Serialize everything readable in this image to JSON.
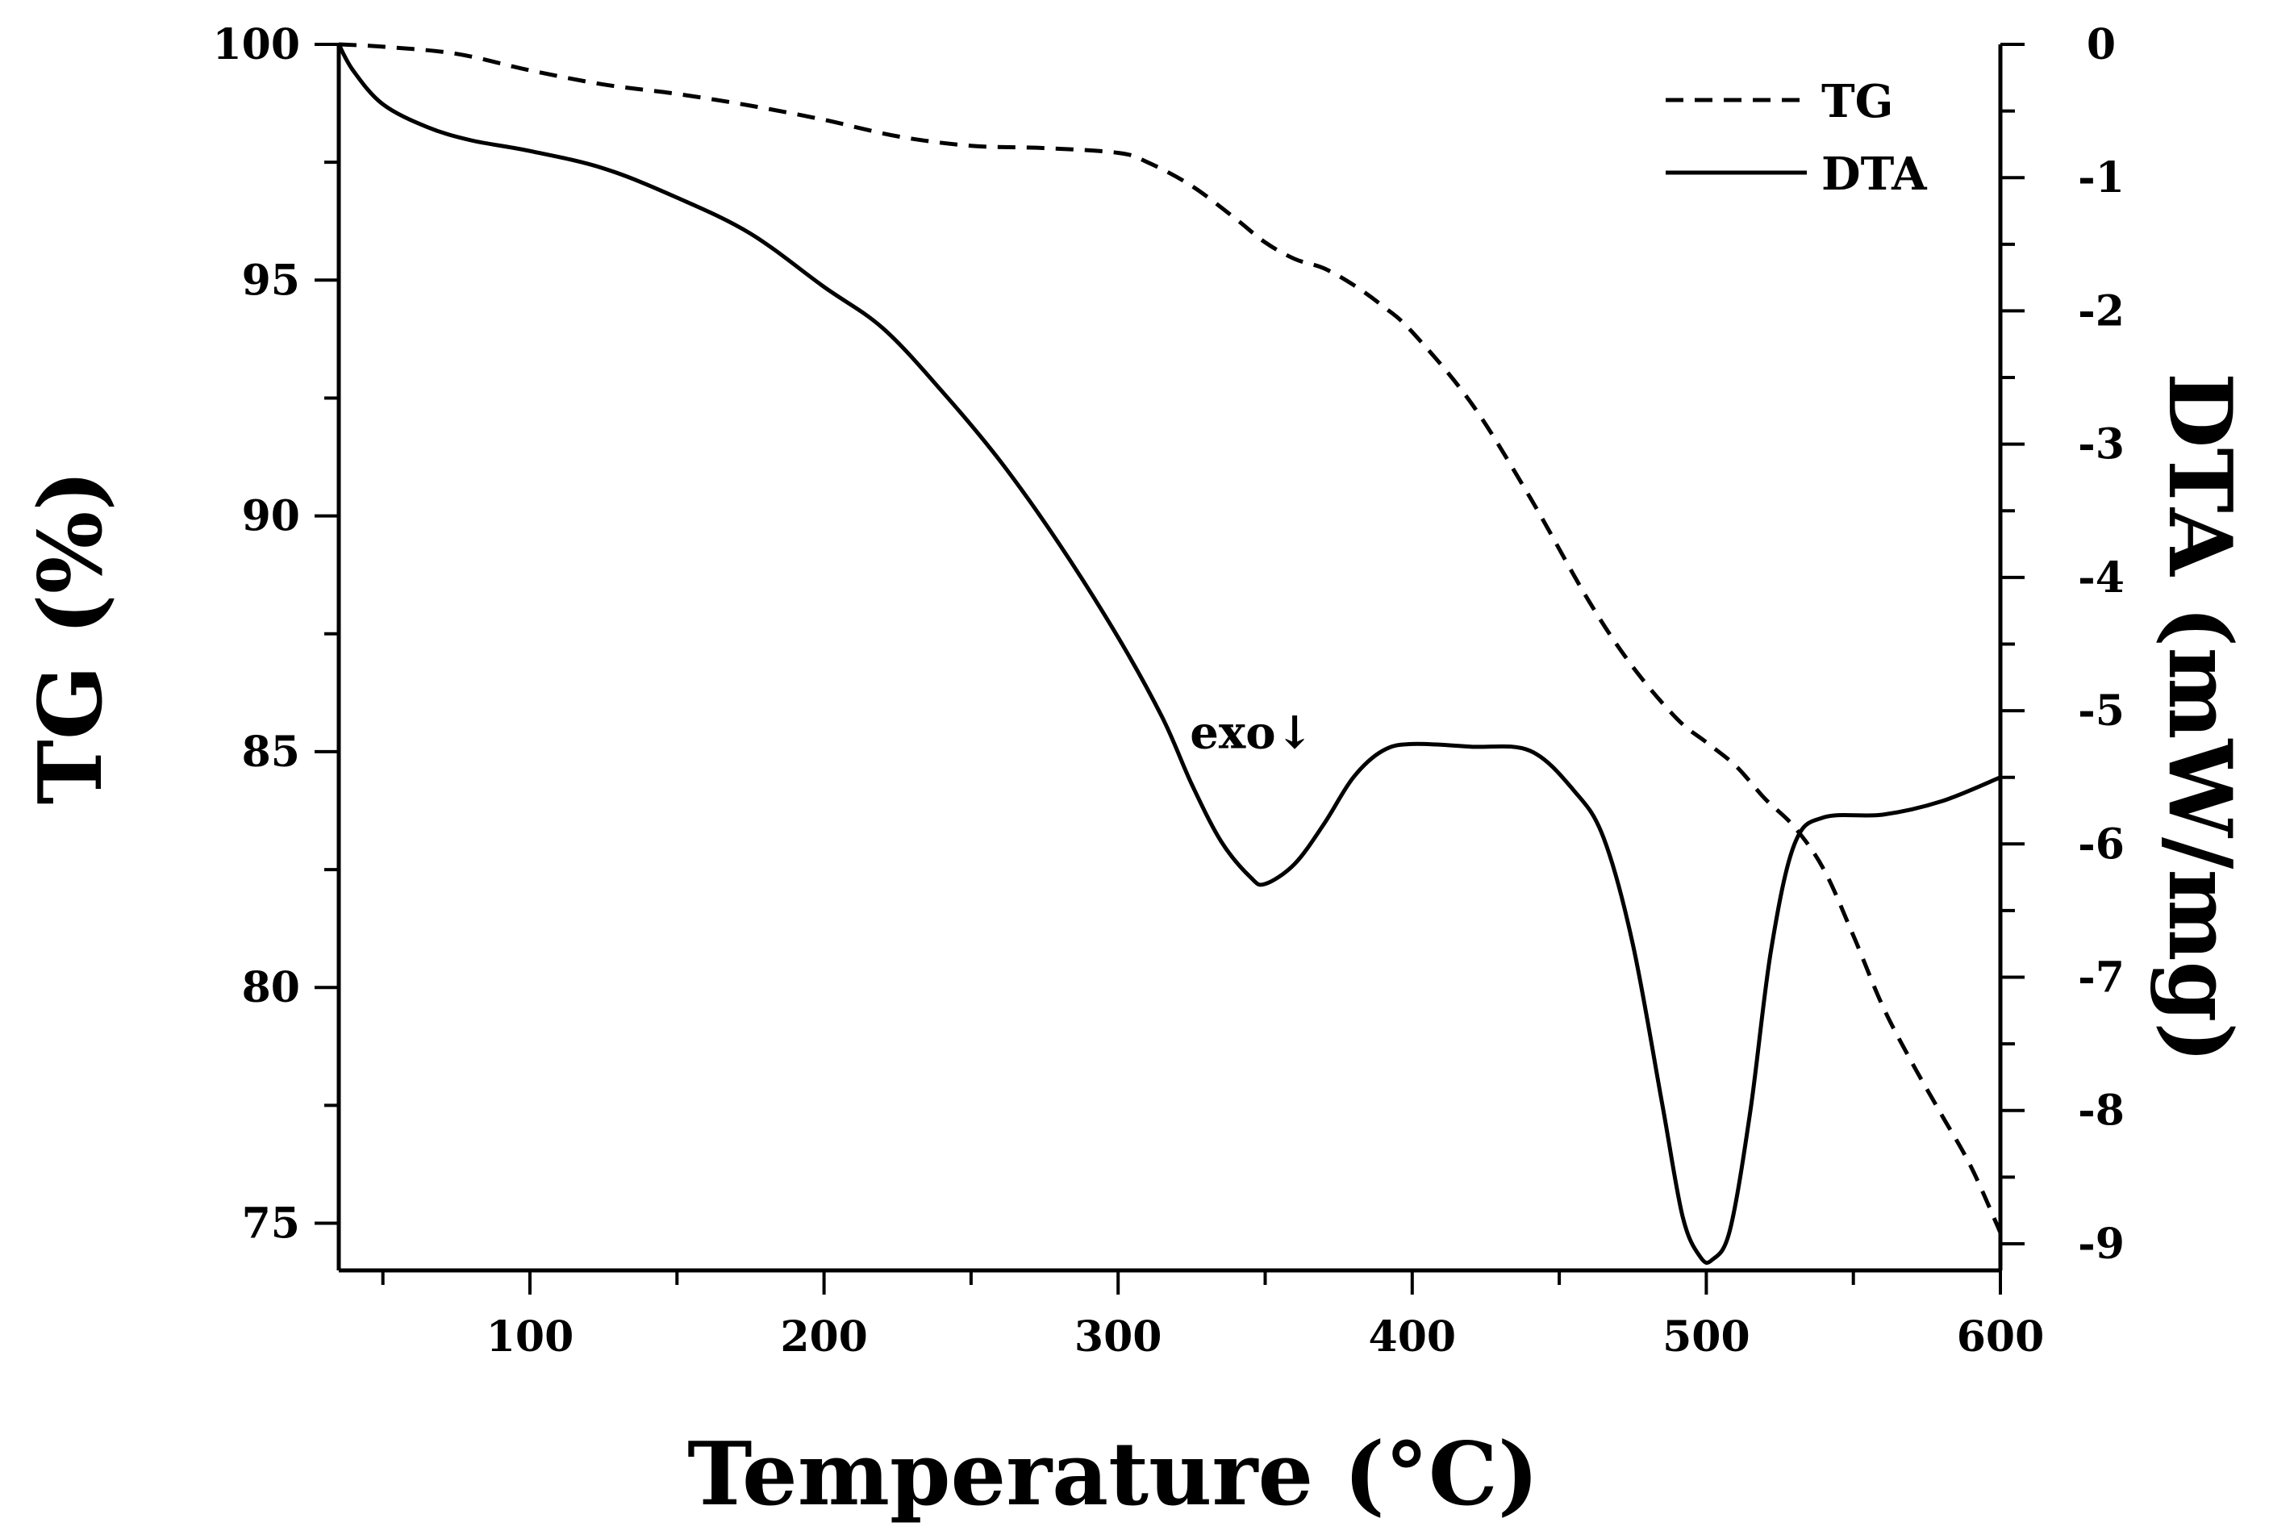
{
  "chart_data": {
    "type": "line",
    "title": "",
    "xlabel": "Temperature (°C)",
    "ylabel": "TG (%)",
    "y2label": "DTA (mW/mg)",
    "xlim": [
      35,
      600
    ],
    "ylim": [
      74,
      100
    ],
    "y2lim": [
      -9.2,
      0
    ],
    "xticks": [
      100,
      200,
      300,
      400,
      500,
      600
    ],
    "xtick_labels": [
      "100",
      "200",
      "300",
      "400",
      "500",
      "600"
    ],
    "yticks": [
      75,
      80,
      85,
      90,
      95,
      100
    ],
    "ytick_labels": [
      "75",
      "80",
      "85",
      "90",
      "95",
      "100"
    ],
    "y2ticks": [
      0,
      -1,
      -2,
      -3,
      -4,
      -5,
      -6,
      -7,
      -8,
      -9
    ],
    "y2tick_labels": [
      "0",
      "-1",
      "-2",
      "-3",
      "-4",
      "-5",
      "-6",
      "-7",
      "-8",
      "-9"
    ],
    "grid": false,
    "legend_position": "top-right",
    "annotation": {
      "text": "exo↓",
      "x": 345,
      "y": 85.5
    },
    "series": [
      {
        "name": "TG",
        "axis": "left",
        "style": "dashed",
        "x": [
          35,
          50,
          75,
          100,
          125,
          150,
          175,
          200,
          225,
          250,
          275,
          300,
          310,
          325,
          340,
          350,
          360,
          370,
          380,
          390,
          400,
          420,
          440,
          460,
          475,
          490,
          500,
          510,
          520,
          530,
          540,
          550,
          560,
          570,
          580,
          590,
          600
        ],
        "values": [
          100,
          99.95,
          99.8,
          99.45,
          99.15,
          98.95,
          98.7,
          98.4,
          98.05,
          97.85,
          97.8,
          97.7,
          97.5,
          97.0,
          96.3,
          95.8,
          95.45,
          95.25,
          94.9,
          94.45,
          93.9,
          92.4,
          90.4,
          88.2,
          86.8,
          85.7,
          85.2,
          84.7,
          84.0,
          83.4,
          82.5,
          81.1,
          79.6,
          78.4,
          77.3,
          76.2,
          74.8
        ]
      },
      {
        "name": "DTA",
        "axis": "right",
        "style": "solid",
        "x": [
          35,
          40,
          50,
          65,
          80,
          100,
          125,
          150,
          175,
          200,
          220,
          240,
          260,
          280,
          300,
          315,
          325,
          335,
          345,
          350,
          360,
          370,
          380,
          390,
          400,
          420,
          440,
          455,
          465,
          475,
          485,
          492,
          498,
          502,
          508,
          515,
          522,
          530,
          540,
          560,
          580,
          600
        ],
        "values": [
          0,
          -0.2,
          -0.45,
          -0.62,
          -0.72,
          -0.8,
          -0.93,
          -1.15,
          -1.42,
          -1.82,
          -2.13,
          -2.6,
          -3.13,
          -3.75,
          -4.45,
          -5.05,
          -5.55,
          -5.98,
          -6.25,
          -6.3,
          -6.15,
          -5.85,
          -5.5,
          -5.3,
          -5.25,
          -5.27,
          -5.3,
          -5.6,
          -5.95,
          -6.75,
          -7.95,
          -8.8,
          -9.1,
          -9.12,
          -8.9,
          -8.0,
          -6.8,
          -6.0,
          -5.8,
          -5.78,
          -5.68,
          -5.5
        ]
      }
    ]
  }
}
